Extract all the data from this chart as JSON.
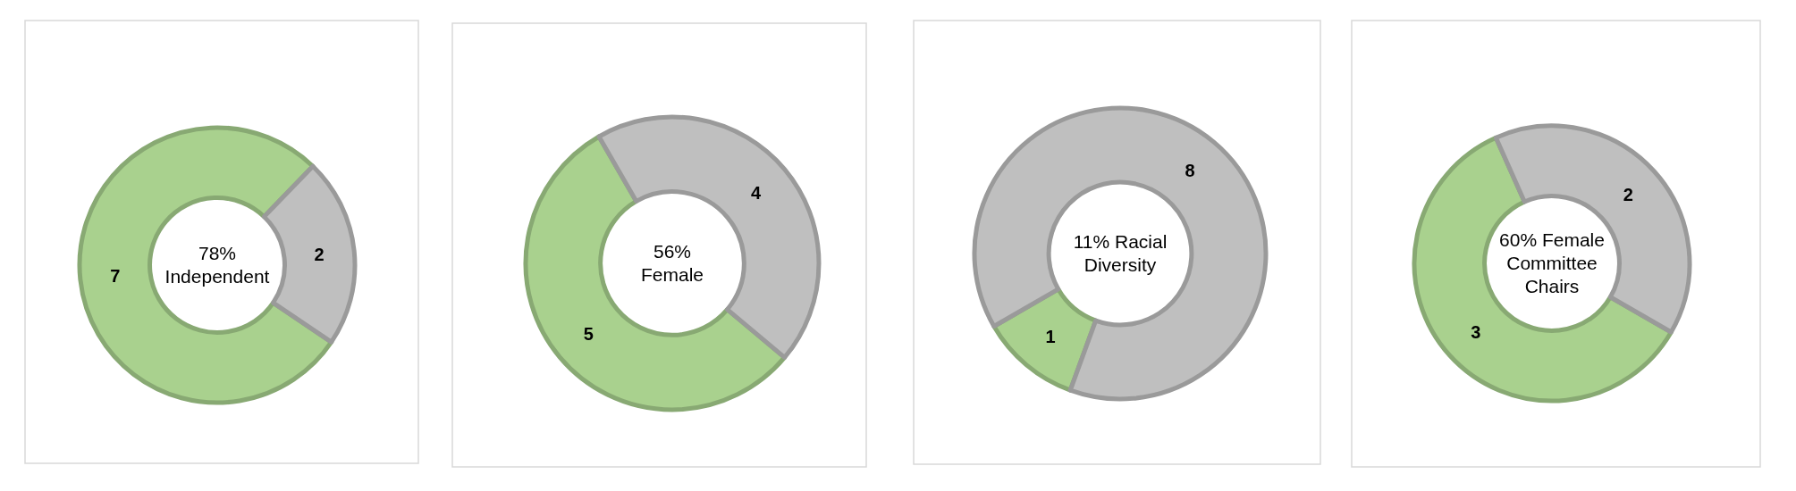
{
  "chart_data": [
    {
      "type": "donut",
      "title": "78%\nIndependent",
      "categories": [
        null,
        null
      ],
      "values": [
        7,
        2
      ],
      "colors": [
        "#a9d18e",
        "#bfbfbf"
      ],
      "data_labels": true
    },
    {
      "type": "donut",
      "title": "56%\nFemale",
      "categories": [
        null,
        null
      ],
      "values": [
        5,
        4
      ],
      "colors": [
        "#a9d18e",
        "#bfbfbf"
      ],
      "data_labels": true
    },
    {
      "type": "donut",
      "title": "11% Racial\nDiversity",
      "categories": [
        null,
        null
      ],
      "values": [
        1,
        8
      ],
      "colors": [
        "#a9d18e",
        "#bfbfbf"
      ],
      "data_labels": true
    },
    {
      "type": "donut",
      "title": "60% Female\nCommittee\nChairs",
      "categories": [
        null,
        null
      ],
      "values": [
        3,
        2
      ],
      "colors": [
        "#a9d18e",
        "#bfbfbf"
      ],
      "data_labels": true
    }
  ]
}
